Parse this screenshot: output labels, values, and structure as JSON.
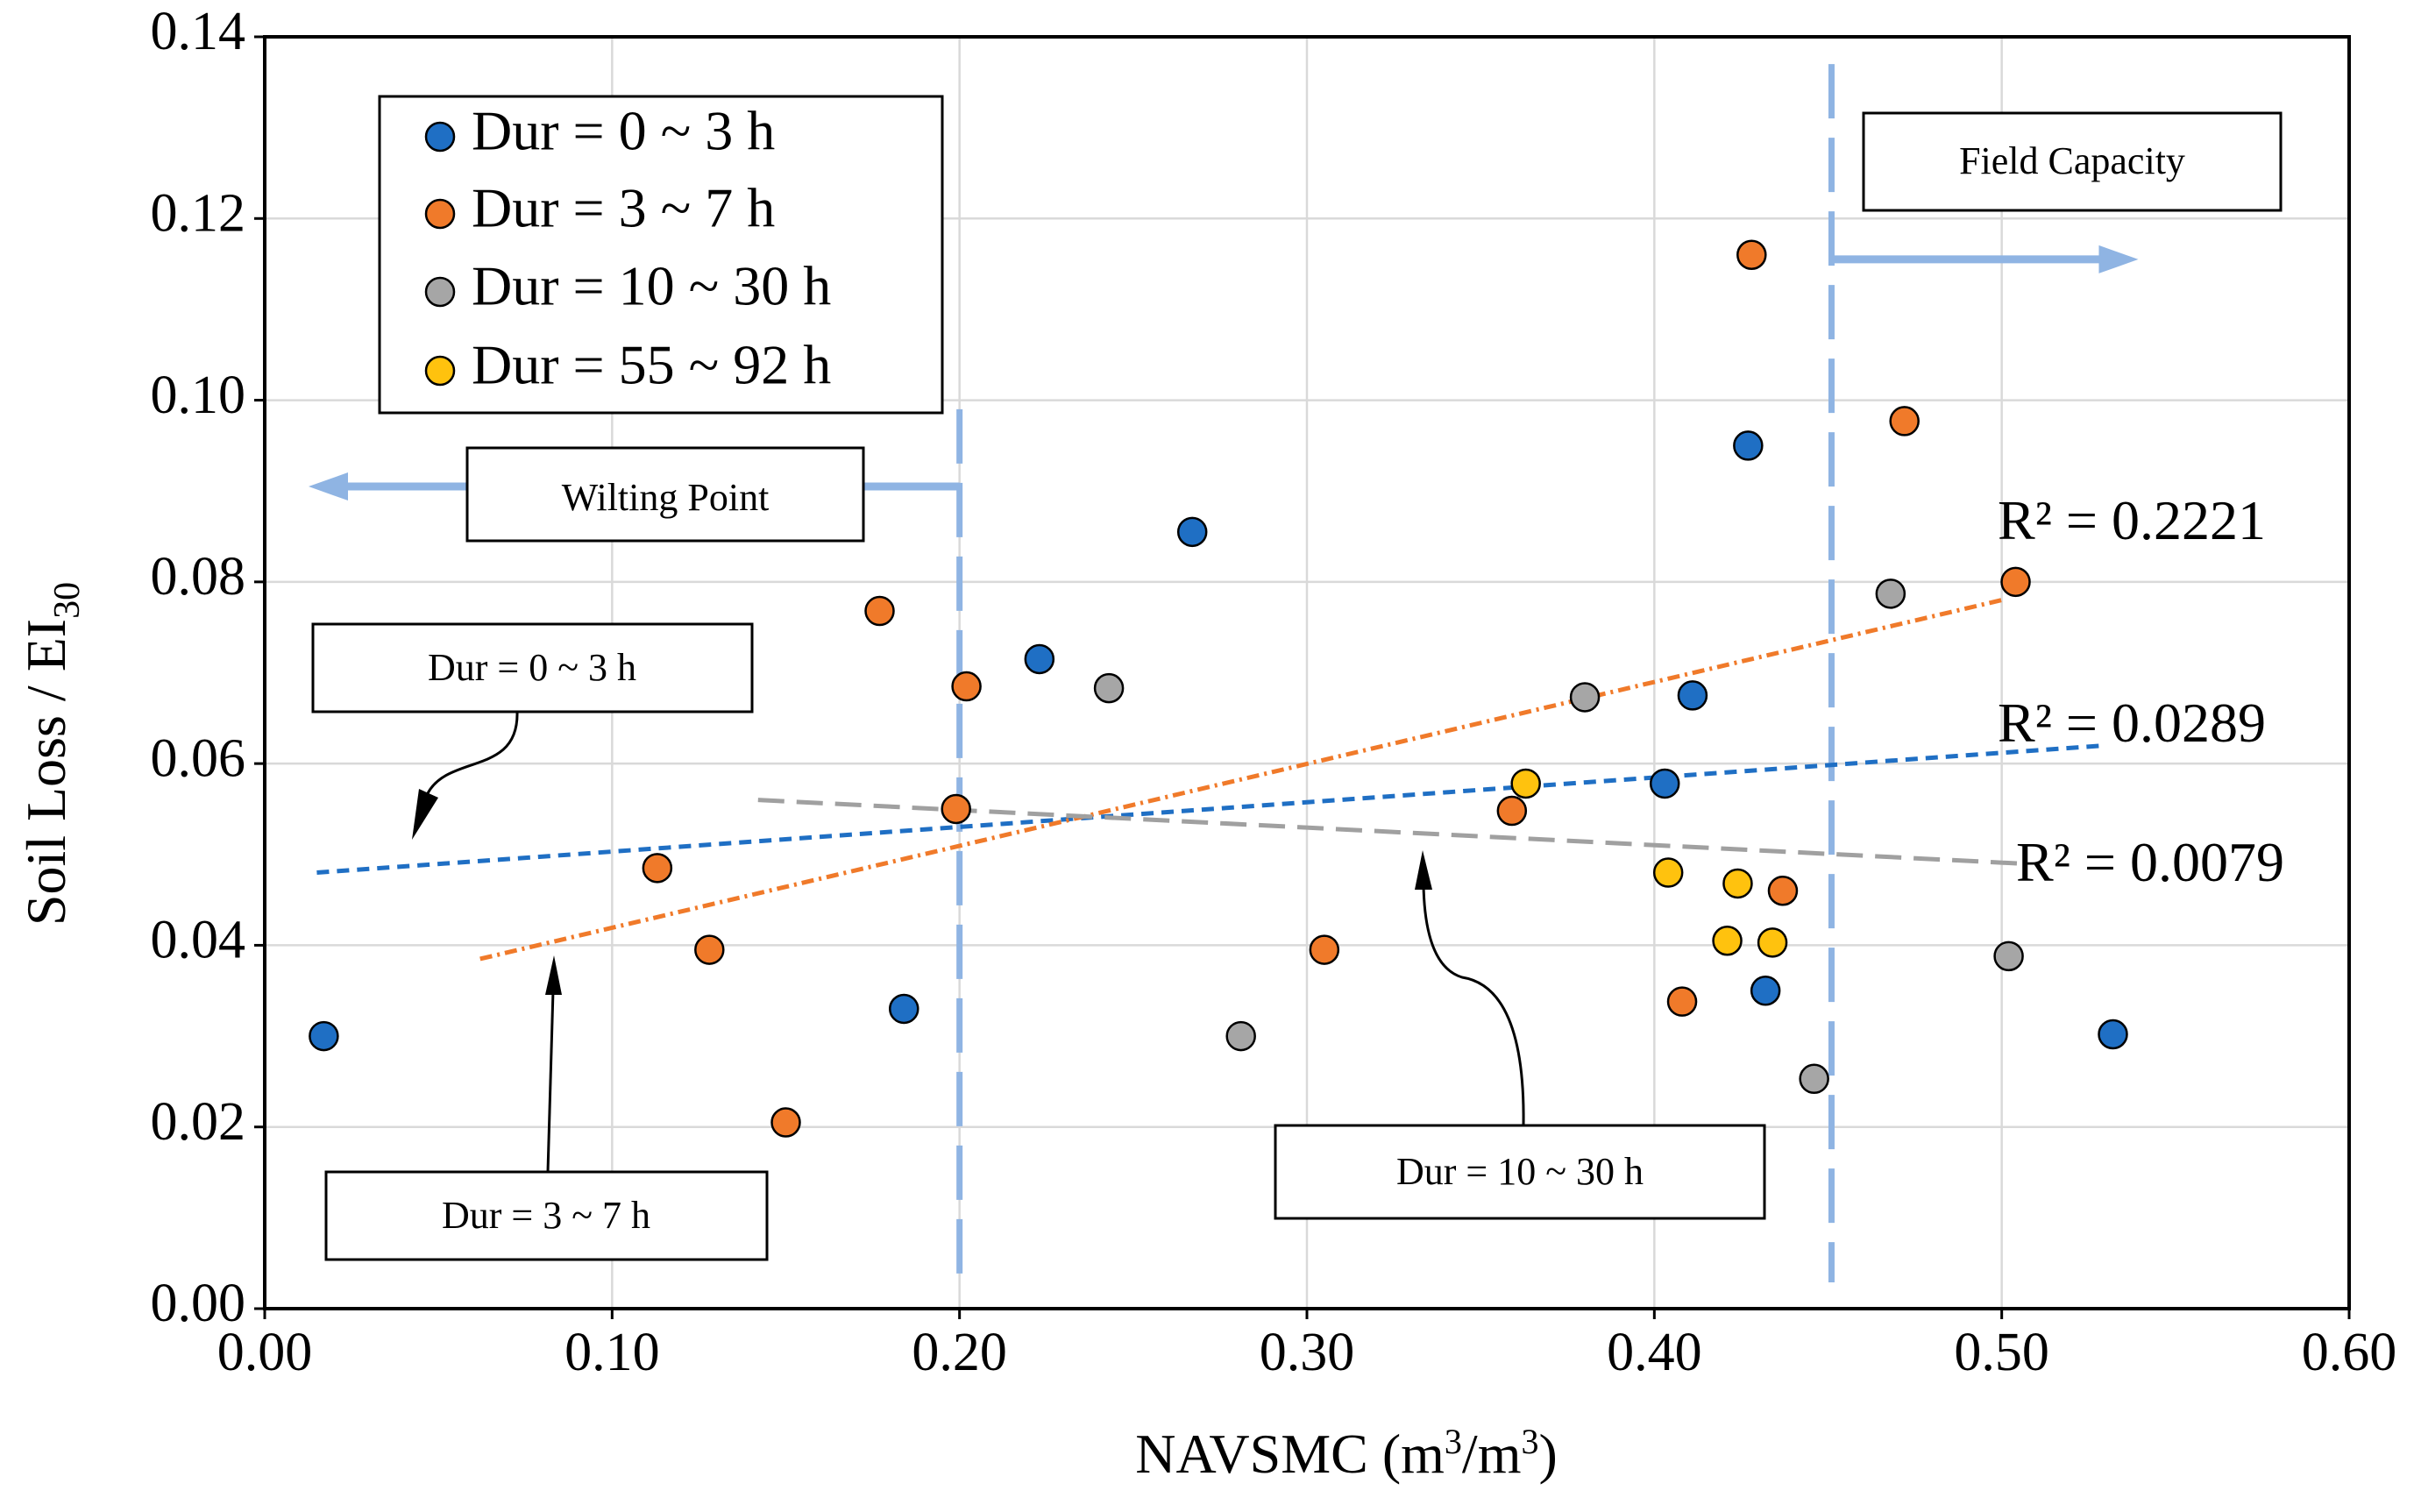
{
  "chart_data": {
    "type": "scatter",
    "xlabel_main": "NAVSMC (m",
    "xlabel_sup1": "3",
    "xlabel_mid": "/m",
    "xlabel_sup2": "3",
    "xlabel_end": ")",
    "ylabel_main": "Soil Loss / EI",
    "ylabel_sub": "30",
    "xlim": [
      0,
      0.6
    ],
    "ylim": [
      0,
      0.14
    ],
    "xticks": [
      "0.00",
      "0.10",
      "0.20",
      "0.30",
      "0.40",
      "0.50",
      "0.60"
    ],
    "yticks": [
      "0.00",
      "0.02",
      "0.04",
      "0.06",
      "0.08",
      "0.10",
      "0.12",
      "0.14"
    ],
    "grid": true,
    "legend_position": "top-left",
    "series": [
      {
        "name": "Dur = 0 ~ 3 h",
        "color": "#1f6fc4",
        "trend_color": "#1f6fc4",
        "trend_dash": "14,9",
        "points": [
          [
            0.017,
            0.03
          ],
          [
            0.184,
            0.033
          ],
          [
            0.223,
            0.0715
          ],
          [
            0.267,
            0.0855
          ],
          [
            0.403,
            0.0578
          ],
          [
            0.411,
            0.0675
          ],
          [
            0.427,
            0.095
          ],
          [
            0.432,
            0.035
          ],
          [
            0.532,
            0.0302
          ]
        ],
        "trend": {
          "x0": 0.015,
          "y0": 0.048,
          "x1": 0.53,
          "y1": 0.062
        },
        "r2_label": "R² = 0.0289"
      },
      {
        "name": "Dur = 3 ~ 7 h",
        "color": "#f07a2a",
        "trend_color": "#f07a2a",
        "trend_dash": "14,6,3,6",
        "points": [
          [
            0.113,
            0.0485
          ],
          [
            0.128,
            0.0395
          ],
          [
            0.15,
            0.0205
          ],
          [
            0.177,
            0.0768
          ],
          [
            0.202,
            0.0685
          ],
          [
            0.199,
            0.055
          ],
          [
            0.305,
            0.0395
          ],
          [
            0.359,
            0.0548
          ],
          [
            0.408,
            0.0338
          ],
          [
            0.428,
            0.116
          ],
          [
            0.437,
            0.046
          ],
          [
            0.472,
            0.0977
          ],
          [
            0.504,
            0.08
          ]
        ],
        "trend": {
          "x0": 0.062,
          "y0": 0.0385,
          "x1": 0.5,
          "y1": 0.078
        },
        "r2_label": "R² = 0.2221"
      },
      {
        "name": "Dur = 10 ~ 30 h",
        "color": "#a6a6a6",
        "trend_color": "#a0a0a0",
        "trend_dash": "30,14",
        "points": [
          [
            0.243,
            0.0683
          ],
          [
            0.281,
            0.03
          ],
          [
            0.38,
            0.0673
          ],
          [
            0.446,
            0.0253
          ],
          [
            0.468,
            0.0787
          ],
          [
            0.502,
            0.0388
          ]
        ],
        "trend": {
          "x0": 0.142,
          "y0": 0.056,
          "x1": 0.505,
          "y1": 0.049
        },
        "r2_label": "R² = 0.0079"
      },
      {
        "name": "Dur = 55 ~ 92 h",
        "color": "#ffc20e",
        "trend_color": null,
        "trend_dash": null,
        "points": [
          [
            0.363,
            0.0578
          ],
          [
            0.404,
            0.048
          ],
          [
            0.421,
            0.0405
          ],
          [
            0.424,
            0.0468
          ],
          [
            0.434,
            0.0403
          ]
        ],
        "trend": null,
        "r2_label": null
      }
    ],
    "reference_lines": [
      {
        "label": "Wilting Point",
        "x": 0.2,
        "direction": "left",
        "top_value": 0.099,
        "arrow_y": 0.0905
      },
      {
        "label": "Field Capacity",
        "x": 0.451,
        "direction": "right",
        "top_value": 0.137,
        "arrow_y": 0.1155
      }
    ],
    "annotations": [
      {
        "label": "Dur = 0 ~ 3 h",
        "series": "Dur = 0 ~ 3 h"
      },
      {
        "label": "Dur = 3 ~ 7 h",
        "series": "Dur = 3 ~ 7 h"
      },
      {
        "label": "Dur = 10 ~ 30 h",
        "series": "Dur = 10 ~ 30 h"
      }
    ]
  }
}
